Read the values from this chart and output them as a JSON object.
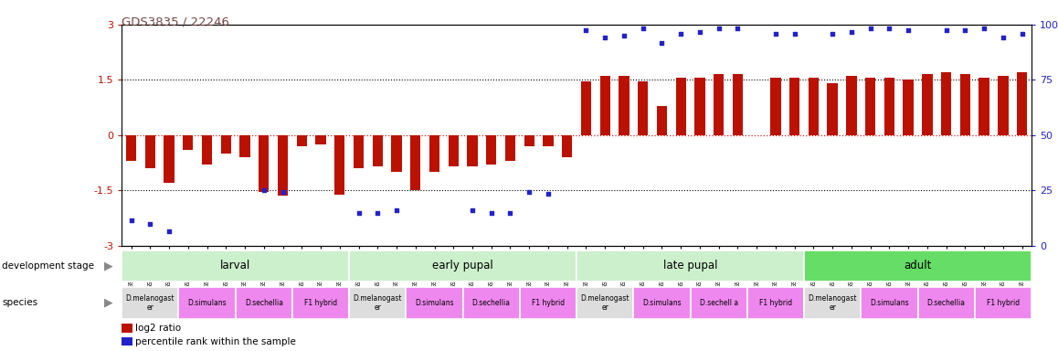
{
  "title": "GDS3835 / 22246",
  "samples": [
    "GSM435987",
    "GSM436078",
    "GSM436079",
    "GSM436091",
    "GSM436092",
    "GSM436093",
    "GSM436827",
    "GSM436828",
    "GSM436829",
    "GSM436839",
    "GSM436841",
    "GSM436842",
    "GSM436080",
    "GSM436083",
    "GSM436084",
    "GSM436094",
    "GSM436095",
    "GSM436096",
    "GSM436830",
    "GSM436831",
    "GSM436832",
    "GSM436848",
    "GSM436850",
    "GSM436852",
    "GSM436085",
    "GSM436086",
    "GSM436087",
    "GSM436097",
    "GSM436098",
    "GSM436099",
    "GSM436833",
    "GSM436834",
    "GSM436835",
    "GSM436854",
    "GSM436856",
    "GSM436857",
    "GSM436088",
    "GSM436089",
    "GSM436090",
    "GSM436100",
    "GSM436101",
    "GSM436102",
    "GSM436836",
    "GSM436837",
    "GSM436838",
    "GSM437041",
    "GSM437091",
    "GSM437092"
  ],
  "log2ratio": [
    -0.7,
    -0.9,
    -1.3,
    -0.4,
    -0.8,
    -0.5,
    -0.6,
    -1.55,
    -1.65,
    -0.3,
    -0.25,
    -1.62,
    -0.9,
    -0.85,
    -1.0,
    -1.5,
    -1.0,
    -0.85,
    -0.85,
    -0.8,
    -0.7,
    -0.3,
    -0.3,
    -0.6,
    1.45,
    1.6,
    1.6,
    1.45,
    0.8,
    1.55,
    1.55,
    1.65,
    1.65,
    0.0,
    1.55,
    1.55,
    1.55,
    1.4,
    1.6,
    1.55,
    1.55,
    1.5,
    1.65,
    1.7,
    1.65,
    1.55,
    1.6,
    1.7
  ],
  "percentile_y": [
    -2.3,
    -2.4,
    -2.6,
    null,
    null,
    null,
    null,
    -1.5,
    -1.55,
    null,
    null,
    null,
    -2.1,
    -2.1,
    -2.05,
    null,
    null,
    null,
    -2.05,
    -2.1,
    -2.1,
    -1.55,
    -1.6,
    null,
    2.85,
    2.65,
    2.7,
    2.9,
    2.5,
    2.75,
    2.8,
    2.9,
    2.9,
    null,
    2.75,
    2.75,
    null,
    2.75,
    2.8,
    2.9,
    2.9,
    2.85,
    null,
    2.85,
    2.85,
    2.9,
    2.65,
    2.75
  ],
  "bar_color": "#bb1100",
  "dot_color": "#2222cc",
  "dev_stages": [
    {
      "label": "larval",
      "start": 0,
      "end": 12,
      "color": "#ccf0cc"
    },
    {
      "label": "early pupal",
      "start": 12,
      "end": 24,
      "color": "#ccf0cc"
    },
    {
      "label": "late pupal",
      "start": 24,
      "end": 36,
      "color": "#ccf0cc"
    },
    {
      "label": "adult",
      "start": 36,
      "end": 48,
      "color": "#66dd66"
    }
  ],
  "species_groups": [
    {
      "label": "D.melanogast\ner",
      "start": 0,
      "end": 3,
      "color": "#dddddd"
    },
    {
      "label": "D.simulans",
      "start": 3,
      "end": 6,
      "color": "#ee88ee"
    },
    {
      "label": "D.sechellia",
      "start": 6,
      "end": 9,
      "color": "#ee88ee"
    },
    {
      "label": "F1 hybrid",
      "start": 9,
      "end": 12,
      "color": "#ee88ee"
    },
    {
      "label": "D.melanogast\ner",
      "start": 12,
      "end": 15,
      "color": "#dddddd"
    },
    {
      "label": "D.simulans",
      "start": 15,
      "end": 18,
      "color": "#ee88ee"
    },
    {
      "label": "D.sechellia",
      "start": 18,
      "end": 21,
      "color": "#ee88ee"
    },
    {
      "label": "F1 hybrid",
      "start": 21,
      "end": 24,
      "color": "#ee88ee"
    },
    {
      "label": "D.melanogast\ner",
      "start": 24,
      "end": 27,
      "color": "#dddddd"
    },
    {
      "label": "D.simulans",
      "start": 27,
      "end": 30,
      "color": "#ee88ee"
    },
    {
      "label": "D.sechell a",
      "start": 30,
      "end": 33,
      "color": "#ee88ee"
    },
    {
      "label": "F1 hybrid",
      "start": 33,
      "end": 36,
      "color": "#ee88ee"
    },
    {
      "label": "D.melanogast\ner",
      "start": 36,
      "end": 39,
      "color": "#dddddd"
    },
    {
      "label": "D.simulans",
      "start": 39,
      "end": 42,
      "color": "#ee88ee"
    },
    {
      "label": "D.sechellia",
      "start": 42,
      "end": 45,
      "color": "#ee88ee"
    },
    {
      "label": "F1 hybrid",
      "start": 45,
      "end": 48,
      "color": "#ee88ee"
    }
  ]
}
